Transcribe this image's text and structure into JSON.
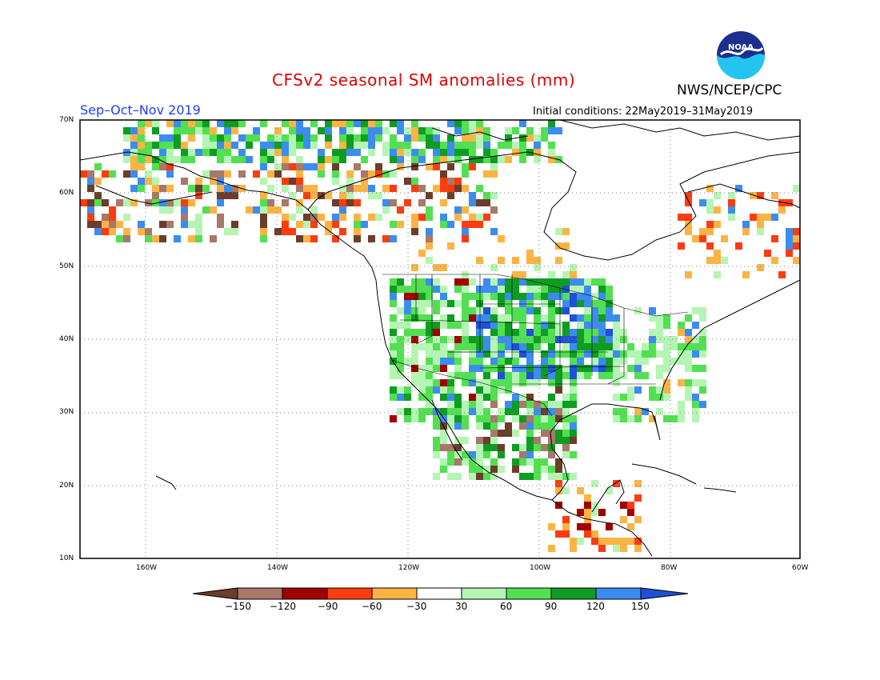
{
  "title": "CFSv2 seasonal SM anomalies (mm)",
  "agency": "NWS/NCEP/CPC",
  "logo_text": "NOAA",
  "season": "Sep–Oct–Nov 2019",
  "initial_conditions": "Initial conditions: 22May2019–31May2019",
  "lat_labels": [
    "70N",
    "60N",
    "50N",
    "40N",
    "30N",
    "20N",
    "10N"
  ],
  "lon_labels": [
    "160W",
    "140W",
    "120W",
    "100W",
    "80W",
    "60W"
  ],
  "colorbar": {
    "labels": [
      "−150",
      "−120",
      "−90",
      "−60",
      "−30",
      "30",
      "60",
      "90",
      "120",
      "150"
    ],
    "colors": [
      "#6b3d2b",
      "#a87868",
      "#a00000",
      "#ff3b10",
      "#fbb444",
      "#ffffff",
      "#b4f5b4",
      "#52e052",
      "#0f9c22",
      "#3c8cf0",
      "#2050d8"
    ]
  },
  "map_colors": {
    "coast": "#000000",
    "grid": "#808080"
  }
}
